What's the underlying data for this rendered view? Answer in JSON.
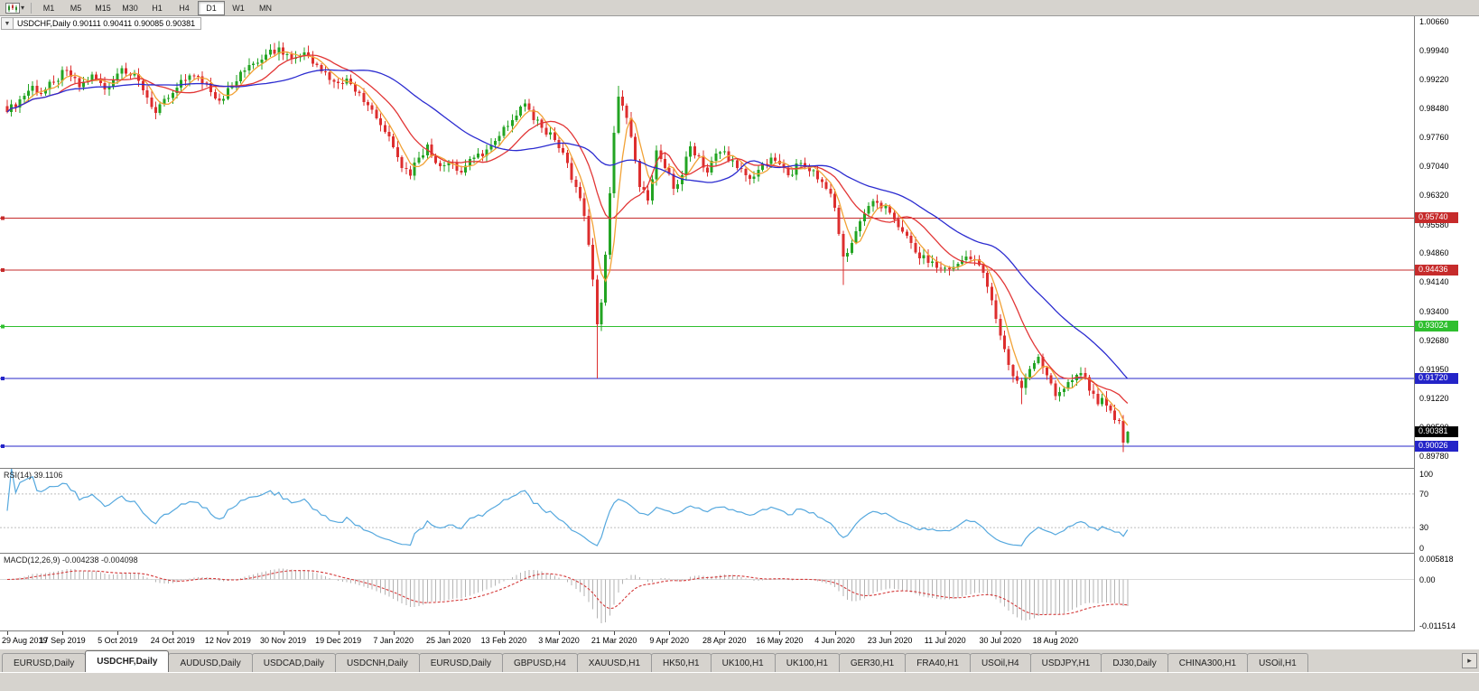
{
  "toolbar": {
    "timeframes": [
      "M1",
      "M5",
      "M15",
      "M30",
      "H1",
      "H4",
      "D1",
      "W1",
      "MN"
    ],
    "selected": "D1"
  },
  "chart_header": {
    "collapse_icon": "▼",
    "title": "USDCHF,Daily",
    "ohlc": "0.90111 0.90411 0.90085 0.90381"
  },
  "price_axis": {
    "ticks": [
      "1.00660",
      "0.99940",
      "0.99220",
      "0.98480",
      "0.97760",
      "0.97040",
      "0.96320",
      "0.95580",
      "0.94860",
      "0.94140",
      "0.93400",
      "0.92680",
      "0.91950",
      "0.91220",
      "0.90500",
      "0.89780"
    ]
  },
  "levels": [
    {
      "value": 0.9574,
      "label": "0.95740",
      "color": "#c62b2b"
    },
    {
      "value": 0.94436,
      "label": "0.94436",
      "color": "#c62b2b"
    },
    {
      "value": 0.93024,
      "label": "0.93024",
      "color": "#2fbf2f"
    },
    {
      "value": 0.9172,
      "label": "0.91720",
      "color": "#2424c8"
    },
    {
      "value": 0.90026,
      "label": "0.90026",
      "color": "#2424c8"
    }
  ],
  "current_price": {
    "value": 0.90381,
    "label": "0.90381",
    "bg": "#000000"
  },
  "time_axis": {
    "labels": [
      "29 Aug 2019",
      "17 Sep 2019",
      "5 Oct 2019",
      "24 Oct 2019",
      "12 Nov 2019",
      "30 Nov 2019",
      "19 Dec 2019",
      "7 Jan 2020",
      "25 Jan 2020",
      "13 Feb 2020",
      "3 Mar 2020",
      "21 Mar 2020",
      "9 Apr 2020",
      "28 Apr 2020",
      "16 May 2020",
      "4 Jun 2020",
      "23 Jun 2020",
      "11 Jul 2020",
      "30 Jul 2020",
      "18 Aug 2020"
    ]
  },
  "indicators": {
    "rsi": {
      "label": "RSI(14) 39.1106",
      "period": 14,
      "value": "39.1106",
      "axis": [
        "100",
        "70",
        "30",
        "0"
      ],
      "guide_levels": [
        70,
        30
      ],
      "color": "#55a8de"
    },
    "macd": {
      "label": "MACD(12,26,9) -0.004238 -0.004098",
      "fast": 12,
      "slow": 26,
      "signal": 9,
      "values": [
        "-0.004238",
        "-0.004098"
      ],
      "axis": [
        "0.005818",
        "0.00",
        "-0.011514"
      ],
      "max": 0.005818,
      "min": -0.011514,
      "histogram_color": "#b3b3b3",
      "signal_color": "#d43a3a"
    }
  },
  "chart_data": {
    "type": "candlestick",
    "symbol": "USDCHF",
    "timeframe": "Daily",
    "candle_count": 265,
    "up_color": "#23a423",
    "down_color": "#dd2e2e",
    "moving_averages": [
      {
        "period": 5,
        "color": "#f2a236"
      },
      {
        "period": 13,
        "color": "#e23636"
      },
      {
        "period": 34,
        "color": "#2b2bd0"
      }
    ],
    "close_anchors": [
      [
        0,
        0.984
      ],
      [
        3,
        0.9872
      ],
      [
        6,
        0.9906
      ],
      [
        8,
        0.9886
      ],
      [
        11,
        0.9916
      ],
      [
        14,
        0.9944
      ],
      [
        17,
        0.9902
      ],
      [
        20,
        0.9934
      ],
      [
        23,
        0.9897
      ],
      [
        27,
        0.995
      ],
      [
        31,
        0.9918
      ],
      [
        35,
        0.9838
      ],
      [
        39,
        0.9888
      ],
      [
        43,
        0.9932
      ],
      [
        47,
        0.9912
      ],
      [
        50,
        0.9868
      ],
      [
        53,
        0.9906
      ],
      [
        57,
        0.9958
      ],
      [
        61,
        0.9984
      ],
      [
        64,
        1.0002
      ],
      [
        67,
        0.9974
      ],
      [
        70,
        0.999
      ],
      [
        73,
        0.9958
      ],
      [
        77,
        0.9916
      ],
      [
        80,
        0.9924
      ],
      [
        83,
        0.9888
      ],
      [
        86,
        0.9846
      ],
      [
        89,
        0.979
      ],
      [
        91,
        0.9752
      ],
      [
        93,
        0.97
      ],
      [
        95,
        0.968
      ],
      [
        97,
        0.9726
      ],
      [
        99,
        0.9758
      ],
      [
        101,
        0.9712
      ],
      [
        104,
        0.9714
      ],
      [
        107,
        0.9688
      ],
      [
        110,
        0.9726
      ],
      [
        113,
        0.9746
      ],
      [
        116,
        0.978
      ],
      [
        119,
        0.982
      ],
      [
        121,
        0.9854
      ],
      [
        123,
        0.9846
      ],
      [
        126,
        0.98
      ],
      [
        129,
        0.977
      ],
      [
        132,
        0.9712
      ],
      [
        134,
        0.9652
      ],
      [
        136,
        0.958
      ],
      [
        138,
        0.942
      ],
      [
        139,
        0.9308
      ],
      [
        140,
        0.9362
      ],
      [
        141,
        0.9482
      ],
      [
        142,
        0.9636
      ],
      [
        143,
        0.9788
      ],
      [
        144,
        0.9878
      ],
      [
        145,
        0.9856
      ],
      [
        147,
        0.9778
      ],
      [
        149,
        0.9652
      ],
      [
        151,
        0.9618
      ],
      [
        153,
        0.9744
      ],
      [
        155,
        0.97
      ],
      [
        157,
        0.9648
      ],
      [
        159,
        0.9682
      ],
      [
        161,
        0.9754
      ],
      [
        163,
        0.973
      ],
      [
        165,
        0.9688
      ],
      [
        167,
        0.9736
      ],
      [
        169,
        0.9742
      ],
      [
        172,
        0.97
      ],
      [
        175,
        0.9672
      ],
      [
        178,
        0.971
      ],
      [
        181,
        0.9718
      ],
      [
        184,
        0.9682
      ],
      [
        187,
        0.9712
      ],
      [
        190,
        0.9694
      ],
      [
        193,
        0.9648
      ],
      [
        195,
        0.96
      ],
      [
        197,
        0.9478
      ],
      [
        199,
        0.9512
      ],
      [
        201,
        0.9566
      ],
      [
        203,
        0.9604
      ],
      [
        205,
        0.9612
      ],
      [
        208,
        0.9588
      ],
      [
        211,
        0.954
      ],
      [
        214,
        0.9488
      ],
      [
        217,
        0.9462
      ],
      [
        220,
        0.9448
      ],
      [
        223,
        0.9452
      ],
      [
        226,
        0.9478
      ],
      [
        229,
        0.9456
      ],
      [
        231,
        0.9402
      ],
      [
        233,
        0.9322
      ],
      [
        235,
        0.9246
      ],
      [
        237,
        0.9178
      ],
      [
        239,
        0.9148
      ],
      [
        241,
        0.9196
      ],
      [
        243,
        0.9226
      ],
      [
        245,
        0.918
      ],
      [
        247,
        0.9128
      ],
      [
        249,
        0.9146
      ],
      [
        251,
        0.9168
      ],
      [
        253,
        0.9186
      ],
      [
        255,
        0.9142
      ],
      [
        257,
        0.9108
      ],
      [
        258,
        0.9124
      ],
      [
        260,
        0.9092
      ],
      [
        262,
        0.9066
      ],
      [
        263,
        0.9011
      ],
      [
        264,
        0.90381
      ]
    ],
    "overrides": {
      "139": {
        "low": 0.9172
      },
      "144": {
        "high": 0.9906
      },
      "197": {
        "low": 0.9406
      },
      "239": {
        "low": 0.9108
      },
      "263": {
        "low": 0.8988
      },
      "264": {
        "open": 0.90111,
        "high": 0.90411,
        "low": 0.90085,
        "close": 0.90381
      }
    }
  },
  "tabs": {
    "items": [
      {
        "label": "EURUSD,Daily",
        "active": false
      },
      {
        "label": "USDCHF,Daily",
        "active": true
      },
      {
        "label": "AUDUSD,Daily",
        "active": false
      },
      {
        "label": "USDCAD,Daily",
        "active": false
      },
      {
        "label": "USDCNH,Daily",
        "active": false
      },
      {
        "label": "EURUSD,Daily",
        "active": false
      },
      {
        "label": "GBPUSD,H4",
        "active": false
      },
      {
        "label": "XAUUSD,H1",
        "active": false
      },
      {
        "label": "HK50,H1",
        "active": false
      },
      {
        "label": "UK100,H1",
        "active": false
      },
      {
        "label": "UK100,H1",
        "active": false
      },
      {
        "label": "GER30,H1",
        "active": false
      },
      {
        "label": "FRA40,H1",
        "active": false
      },
      {
        "label": "USOil,H4",
        "active": false
      },
      {
        "label": "USDJPY,H1",
        "active": false
      },
      {
        "label": "DJ30,Daily",
        "active": false
      },
      {
        "label": "CHINA300,H1",
        "active": false
      },
      {
        "label": "USOil,H1",
        "active": false
      }
    ],
    "scroll_right_icon": "▸"
  }
}
